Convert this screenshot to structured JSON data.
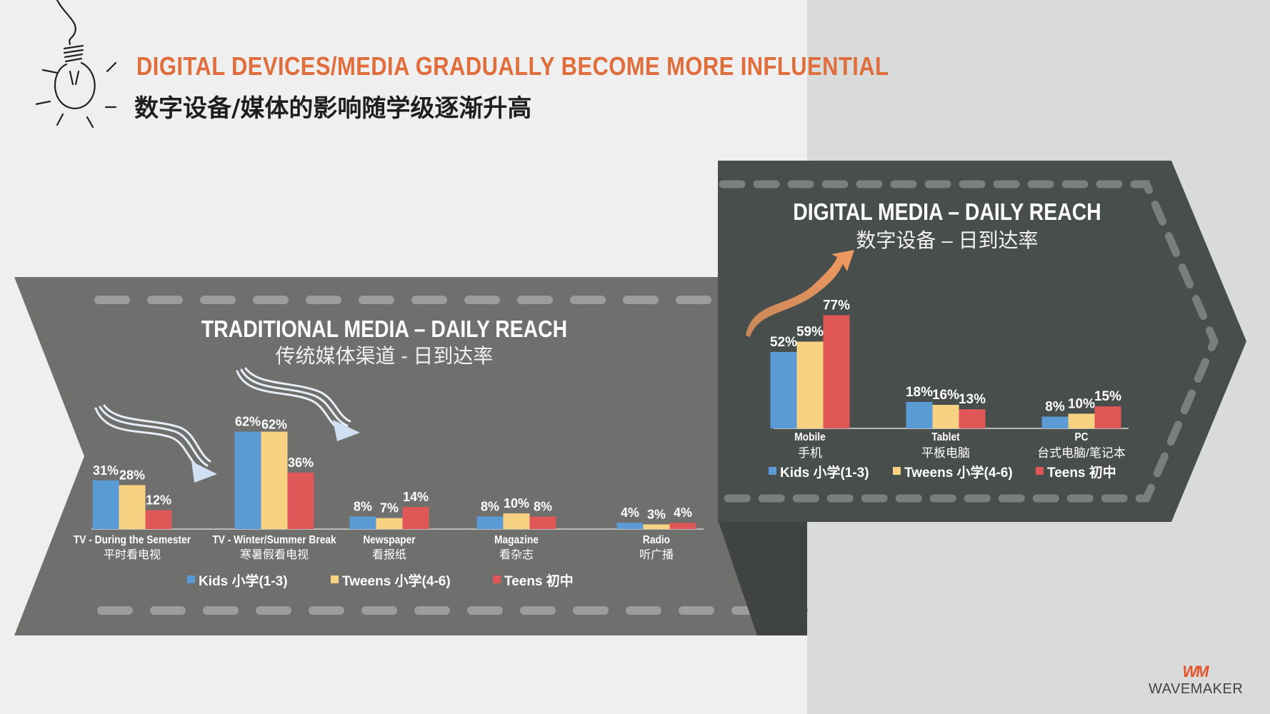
{
  "header": {
    "title_en": "DIGITAL DEVICES/MEDIA GRADUALLY BECOME MORE INFLUENTIAL",
    "title_cn": "数字设备/媒体的影响随学级逐渐升高"
  },
  "colors": {
    "kids": "#5b9bd5",
    "tweens": "#f8d283",
    "teens": "#e05757",
    "accent": "#e06d3c"
  },
  "legend": {
    "kids": "Kids 小学(1-3)",
    "tweens": "Tweens 小学(4-6)",
    "teens": "Teens 初中"
  },
  "chart_data": [
    {
      "type": "bar",
      "title": "TRADITIONAL MEDIA – DAILY REACH",
      "subtitle": "传统媒体渠道 - 日到达率",
      "categories": [
        "TV - During the Semester",
        "TV - Winter/Summer Break",
        "Newspaper",
        "Magazine",
        "Radio"
      ],
      "categories_cn": [
        "平时看电视",
        "寒暑假看电视",
        "看报纸",
        "看杂志",
        "听广播"
      ],
      "series": [
        {
          "name": "Kids 小学(1-3)",
          "values": [
            31,
            62,
            8,
            8,
            4
          ]
        },
        {
          "name": "Tweens 小学(4-6)",
          "values": [
            28,
            62,
            7,
            10,
            3
          ]
        },
        {
          "name": "Teens 初中",
          "values": [
            12,
            36,
            14,
            8,
            4
          ]
        }
      ],
      "data_labels": [
        [
          "31%",
          "62%",
          "8%",
          "8%",
          "4%"
        ],
        [
          "28%",
          "62%",
          "7%",
          "10%",
          "3%"
        ],
        [
          "12%",
          "36%",
          "14%",
          "8%",
          "4%"
        ]
      ],
      "ylim": [
        0,
        100
      ],
      "grid": false,
      "legend_position": "bottom"
    },
    {
      "type": "bar",
      "title": "DIGITAL MEDIA – DAILY REACH",
      "subtitle": "数字设备 – 日到达率",
      "categories": [
        "Mobile",
        "Tablet",
        "PC"
      ],
      "categories_cn": [
        "手机",
        "平板电脑",
        "台式电脑/笔记本"
      ],
      "series": [
        {
          "name": "Kids 小学(1-3)",
          "values": [
            52,
            18,
            8
          ]
        },
        {
          "name": "Tweens 小学(4-6)",
          "values": [
            59,
            16,
            10
          ]
        },
        {
          "name": "Teens 初中",
          "values": [
            77,
            13,
            15
          ]
        }
      ],
      "data_labels": [
        [
          "52%",
          "18%",
          "8%"
        ],
        [
          "59%",
          "16%",
          "10%"
        ],
        [
          "77%",
          "13%",
          "15%"
        ]
      ],
      "ylim": [
        0,
        100
      ],
      "grid": false,
      "legend_position": "bottom"
    }
  ],
  "logo": {
    "mark": "WM",
    "wordmark": "WAVEMAKER"
  }
}
